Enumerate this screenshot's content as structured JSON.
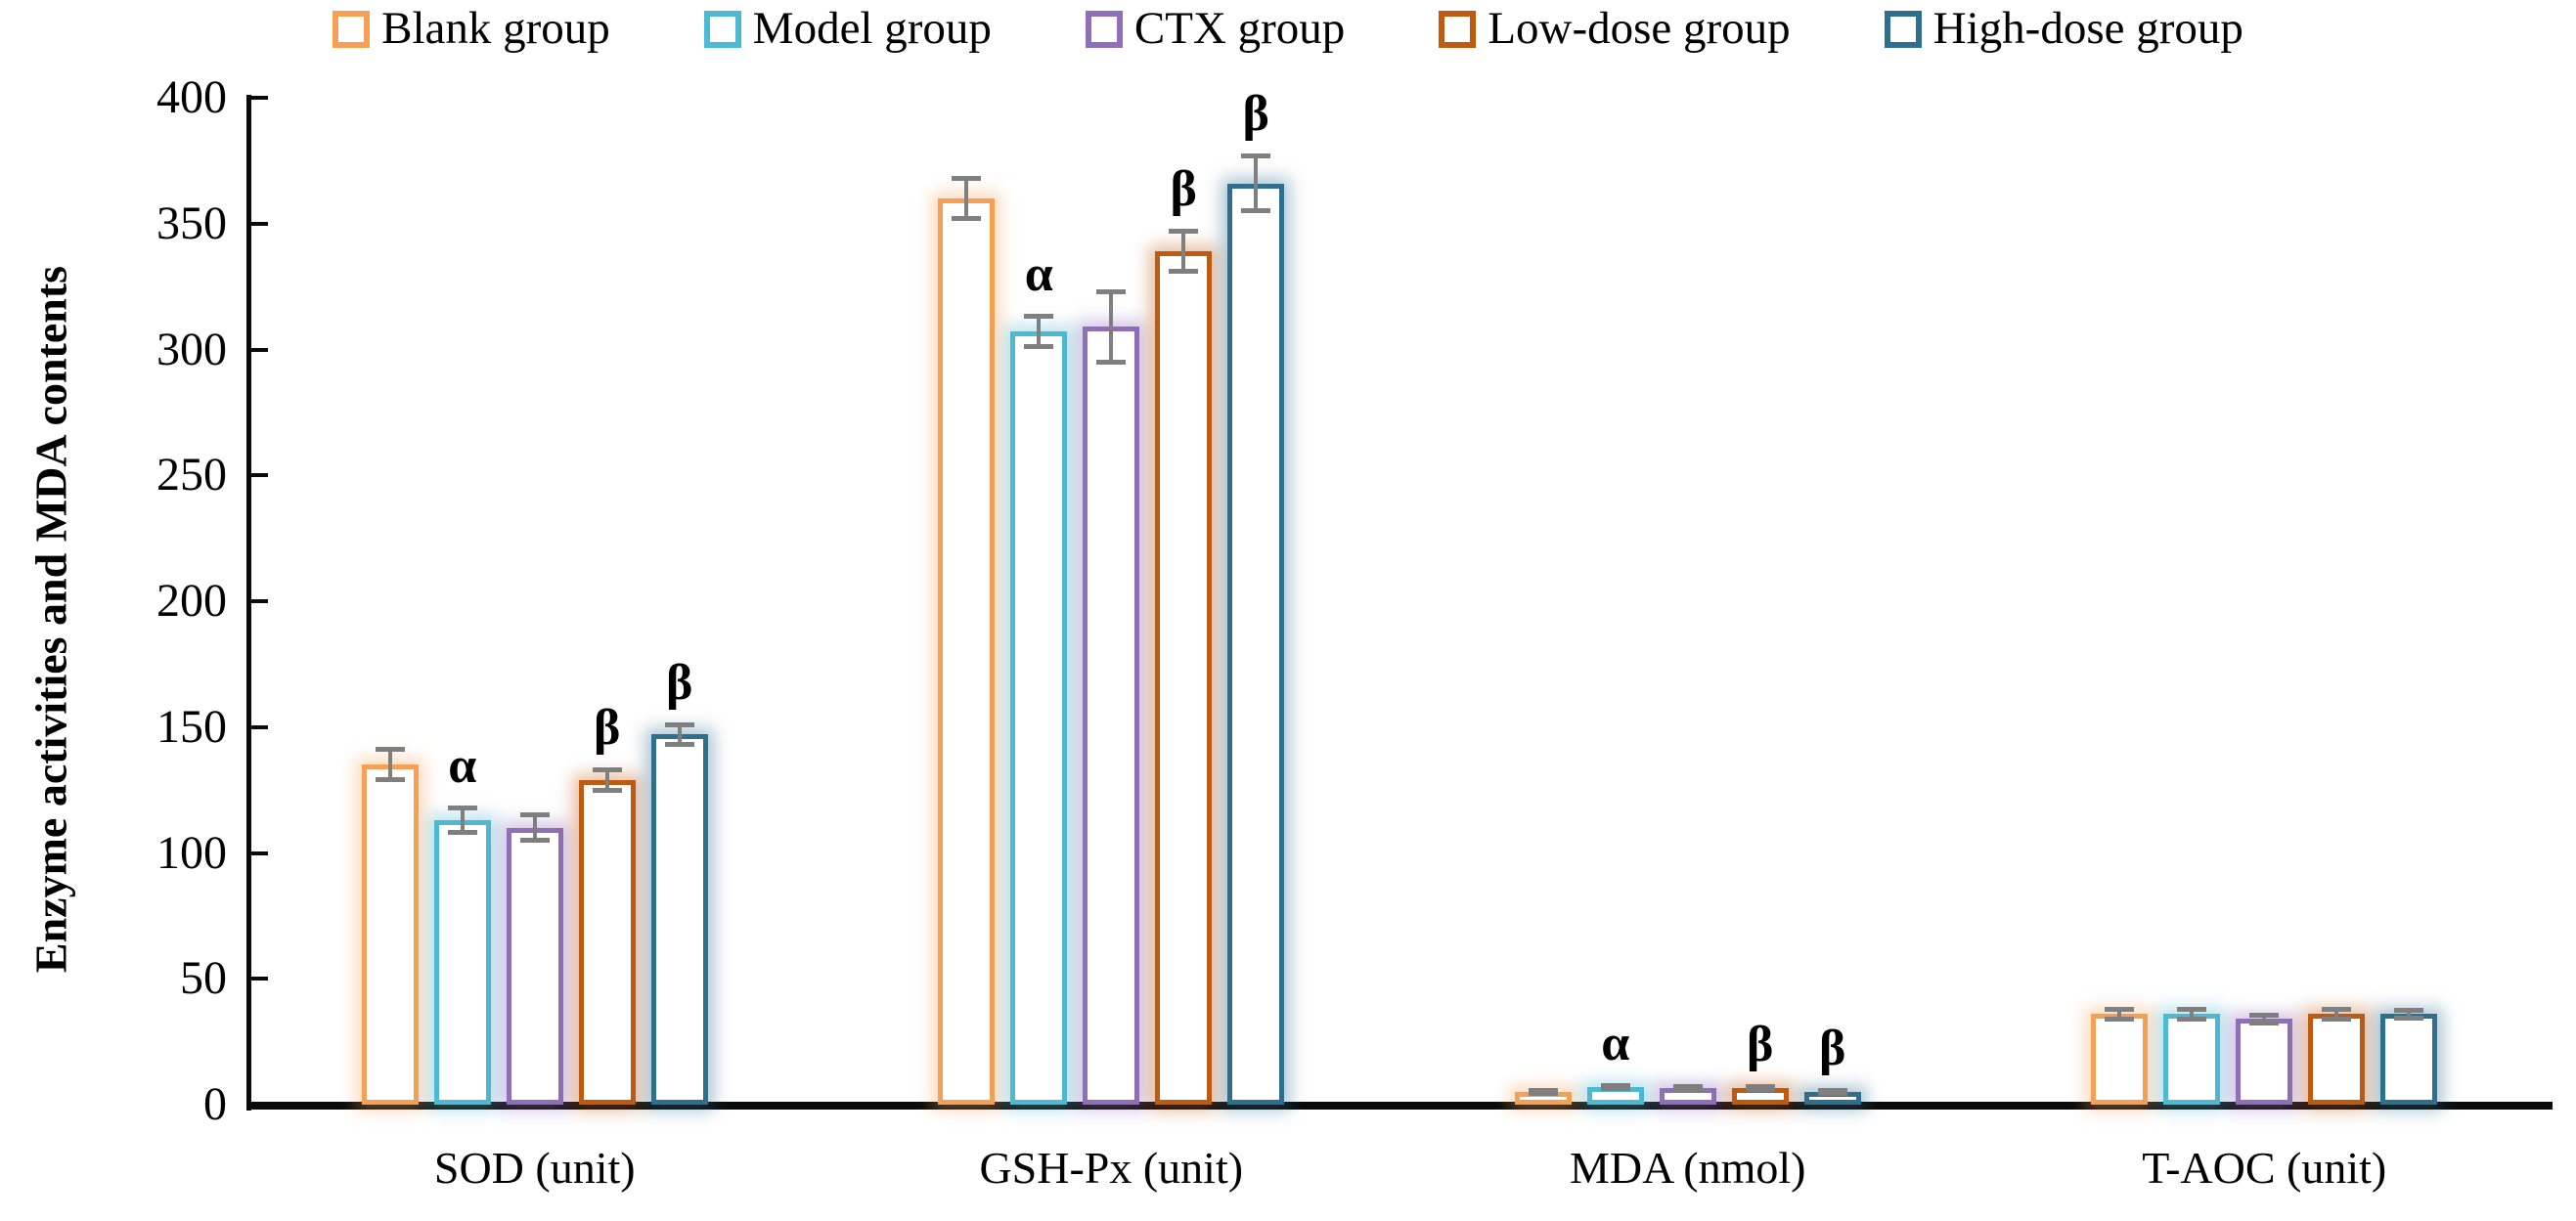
{
  "chart_data": {
    "type": "bar",
    "title": "",
    "xlabel": "",
    "ylabel": "Enzyme activities and MDA contents",
    "ylim": [
      0,
      400
    ],
    "yticks": [
      0,
      50,
      100,
      150,
      200,
      250,
      300,
      350,
      400
    ],
    "grid": false,
    "legend_position": "top",
    "error_bar_color": "#7f7f7f",
    "axis_color": "#0a0a0a",
    "categories": [
      "SOD (unit)",
      "GSH-Px (unit)",
      "MDA (nmol)",
      "T-AOC (unit)"
    ],
    "series": [
      {
        "name": "Blank group",
        "color": "#F5A054",
        "values": [
          135,
          360,
          5,
          36
        ],
        "errors": [
          7,
          9,
          1.5,
          3
        ],
        "annotations": [
          "",
          "",
          "",
          ""
        ]
      },
      {
        "name": "Model group",
        "color": "#4DB9D3",
        "values": [
          113,
          307,
          7,
          36
        ],
        "errors": [
          6,
          7,
          1.5,
          3
        ],
        "annotations": [
          "α",
          "α",
          "α",
          ""
        ]
      },
      {
        "name": "CTX group",
        "color": "#8E6FB8",
        "values": [
          110,
          309,
          6.6,
          34
        ],
        "errors": [
          6,
          15,
          1.5,
          2.5
        ],
        "annotations": [
          "",
          "",
          "",
          ""
        ]
      },
      {
        "name": "Low-dose group",
        "color": "#C05A11",
        "values": [
          129,
          339,
          6.5,
          36
        ],
        "errors": [
          5,
          9,
          1.5,
          3
        ],
        "annotations": [
          "β",
          "β",
          "β",
          ""
        ]
      },
      {
        "name": "High-dose group",
        "color": "#2E6F8E",
        "values": [
          147,
          366,
          5,
          36
        ],
        "errors": [
          5,
          12,
          1.5,
          2.5
        ],
        "annotations": [
          "β",
          "β",
          "β",
          ""
        ]
      }
    ]
  }
}
